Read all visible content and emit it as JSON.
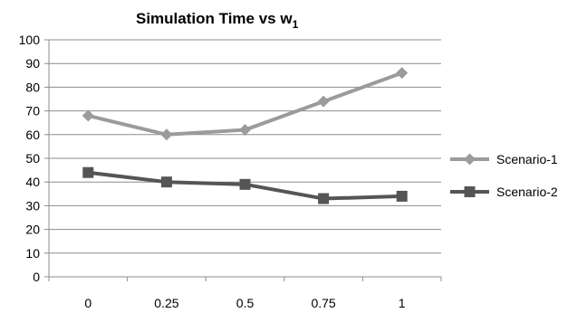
{
  "chart_data": {
    "type": "line",
    "title": "Simulation Time vs w",
    "title_subscript": "1",
    "xlabel": "",
    "ylabel": "",
    "categories": [
      "0",
      "0.25",
      "0.5",
      "0.75",
      "1"
    ],
    "ylim": [
      0,
      100
    ],
    "yticks": [
      "0",
      "10",
      "20",
      "30",
      "40",
      "50",
      "60",
      "70",
      "80",
      "90",
      "100"
    ],
    "grid": true,
    "legend_position": "right",
    "series": [
      {
        "name": "Scenario-1",
        "values": [
          68,
          60,
          62,
          74,
          86
        ],
        "color": "#9b9b9b",
        "marker": "diamond"
      },
      {
        "name": "Scenario-2",
        "values": [
          44,
          40,
          39,
          33,
          34
        ],
        "color": "#555555",
        "marker": "square"
      }
    ]
  }
}
